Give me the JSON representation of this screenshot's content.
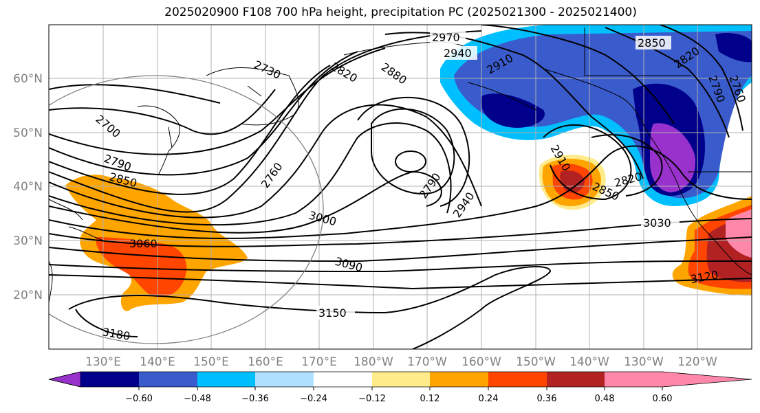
{
  "title": "2025020900 F108 700 hPa height, precipitation PC (2025021300 - 2025021400)",
  "lat_labels": [
    "60°N",
    "50°N",
    "40°N",
    "30°N",
    "20°N"
  ],
  "lon_labels": [
    "130°E",
    "140°E",
    "150°E",
    "160°E",
    "170°E",
    "180°W",
    "170°W",
    "160°W",
    "150°W",
    "140°W",
    "130°W",
    "120°W"
  ],
  "contour_labels": [
    "2970",
    "2940",
    "2730",
    "2820",
    "2880",
    "2910",
    "2850",
    "2820",
    "2790",
    "2760",
    "2700",
    "2790",
    "2850",
    "2760",
    "2790",
    "2940",
    "2910",
    "2850",
    "2820",
    "3000",
    "3030",
    "3060",
    "3090",
    "3120",
    "3150",
    "3180"
  ],
  "colorbar": {
    "ticks": [
      "−0.60",
      "−0.48",
      "−0.36",
      "−0.24",
      "−0.12",
      "0.12",
      "0.24",
      "0.36",
      "0.48",
      "0.60"
    ],
    "colors": [
      "#9932cc",
      "#00008b",
      "#3a5bcc",
      "#00bfff",
      "#b0e0ff",
      "#ffffff",
      "#ffeb8a",
      "#ffa500",
      "#ff4500",
      "#b22222",
      "#ff88aa"
    ]
  }
}
